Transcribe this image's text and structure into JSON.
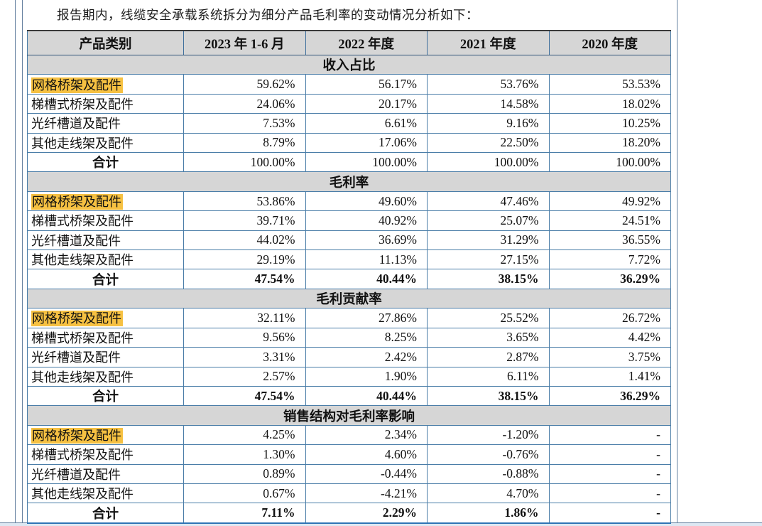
{
  "intro_text": "报告期内，线缆安全承载系统拆分为细分产品毛利率的变动情况分析如下：",
  "colors": {
    "highlight": "#f6c142",
    "header_bg": "#d6d6d6",
    "table_border": "#4a7da8",
    "table_bottom_border": "#2e74b5",
    "page_line": "#64809f",
    "bottom_strip": "#dde8f3"
  },
  "table": {
    "columns": [
      "产品类别",
      "2023 年 1-6 月",
      "2022 年度",
      "2021 年度",
      "2020 年度"
    ],
    "sections": [
      {
        "title": "收入占比",
        "bold_totals": false,
        "rows": [
          {
            "label": "网格桥架及配件",
            "highlight": true,
            "total": false,
            "values": [
              "59.62%",
              "56.17%",
              "53.76%",
              "53.53%"
            ]
          },
          {
            "label": "梯槽式桥架及配件",
            "highlight": false,
            "total": false,
            "values": [
              "24.06%",
              "20.17%",
              "14.58%",
              "18.02%"
            ]
          },
          {
            "label": "光纤槽道及配件",
            "highlight": false,
            "total": false,
            "values": [
              "7.53%",
              "6.61%",
              "9.16%",
              "10.25%"
            ]
          },
          {
            "label": "其他走线架及配件",
            "highlight": false,
            "total": false,
            "values": [
              "8.79%",
              "17.06%",
              "22.50%",
              "18.20%"
            ]
          },
          {
            "label": "合计",
            "highlight": false,
            "total": true,
            "values": [
              "100.00%",
              "100.00%",
              "100.00%",
              "100.00%"
            ]
          }
        ]
      },
      {
        "title": "毛利率",
        "bold_totals": true,
        "rows": [
          {
            "label": "网格桥架及配件",
            "highlight": true,
            "total": false,
            "values": [
              "53.86%",
              "49.60%",
              "47.46%",
              "49.92%"
            ]
          },
          {
            "label": "梯槽式桥架及配件",
            "highlight": false,
            "total": false,
            "values": [
              "39.71%",
              "40.92%",
              "25.07%",
              "24.51%"
            ]
          },
          {
            "label": "光纤槽道及配件",
            "highlight": false,
            "total": false,
            "values": [
              "44.02%",
              "36.69%",
              "31.29%",
              "36.55%"
            ]
          },
          {
            "label": "其他走线架及配件",
            "highlight": false,
            "total": false,
            "values": [
              "29.19%",
              "11.13%",
              "27.15%",
              "7.72%"
            ]
          },
          {
            "label": "合计",
            "highlight": false,
            "total": true,
            "values": [
              "47.54%",
              "40.44%",
              "38.15%",
              "36.29%"
            ]
          }
        ]
      },
      {
        "title": "毛利贡献率",
        "bold_totals": true,
        "rows": [
          {
            "label": "网格桥架及配件",
            "highlight": true,
            "total": false,
            "values": [
              "32.11%",
              "27.86%",
              "25.52%",
              "26.72%"
            ]
          },
          {
            "label": "梯槽式桥架及配件",
            "highlight": false,
            "total": false,
            "values": [
              "9.56%",
              "8.25%",
              "3.65%",
              "4.42%"
            ]
          },
          {
            "label": "光纤槽道及配件",
            "highlight": false,
            "total": false,
            "values": [
              "3.31%",
              "2.42%",
              "2.87%",
              "3.75%"
            ]
          },
          {
            "label": "其他走线架及配件",
            "highlight": false,
            "total": false,
            "values": [
              "2.57%",
              "1.90%",
              "6.11%",
              "1.41%"
            ]
          },
          {
            "label": "合计",
            "highlight": false,
            "total": true,
            "values": [
              "47.54%",
              "40.44%",
              "38.15%",
              "36.29%"
            ]
          }
        ]
      },
      {
        "title": "销售结构对毛利率影响",
        "bold_totals": true,
        "rows": [
          {
            "label": "网格桥架及配件",
            "highlight": true,
            "total": false,
            "values": [
              "4.25%",
              "2.34%",
              "-1.20%",
              "-"
            ]
          },
          {
            "label": "梯槽式桥架及配件",
            "highlight": false,
            "total": false,
            "values": [
              "1.30%",
              "4.60%",
              "-0.76%",
              "-"
            ]
          },
          {
            "label": "光纤槽道及配件",
            "highlight": false,
            "total": false,
            "values": [
              "0.89%",
              "-0.44%",
              "-0.88%",
              "-"
            ]
          },
          {
            "label": "其他走线架及配件",
            "highlight": false,
            "total": false,
            "values": [
              "0.67%",
              "-4.21%",
              "4.70%",
              "-"
            ]
          },
          {
            "label": "合计",
            "highlight": false,
            "total": true,
            "values": [
              "7.11%",
              "2.29%",
              "1.86%",
              "-"
            ]
          }
        ]
      }
    ]
  }
}
